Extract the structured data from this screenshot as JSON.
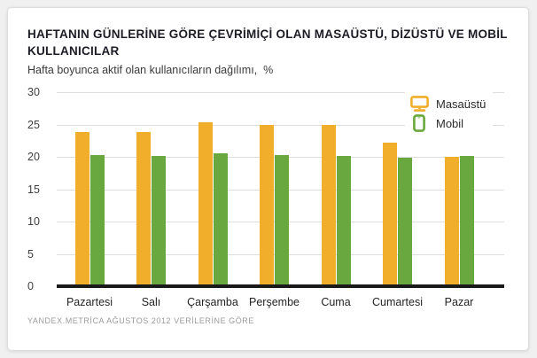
{
  "header": {
    "title_line1": "HAFTANIN GÜNLERİNE GÖRE ÇEVRİMİÇİ OLAN MASAÜSTÜ, DİZÜSTÜ VE MOBİL",
    "title_line2": "KULLANICILAR",
    "subtitle": "Hafta boyunca aktif olan kullanıcıların dağılımı,  %"
  },
  "footer": {
    "source": "YANDEX.METRİCA AĞUSTOS 2012 VERİLERİNE GÖRE"
  },
  "colors": {
    "desktop_bar": "#f0ae2b",
    "mobile_bar": "#68a83e",
    "gridline": "#dedede",
    "axis": "#1a1a1a",
    "card_background": "#ffffff",
    "page_background": "#f0f0f1"
  },
  "chart_data": {
    "type": "bar",
    "title": "HAFTANIN GÜNLERİNE GÖRE ÇEVRİMİÇİ OLAN MASAÜSTÜ, DİZÜSTÜ VE MOBİL KULLANICILAR",
    "subtitle": "Hafta boyunca aktif olan kullanıcıların dağılımı, %",
    "categories": [
      "Pazartesi",
      "Salı",
      "Çarşamba",
      "Perşembe",
      "Cuma",
      "Cumartesi",
      "Pazar"
    ],
    "series": [
      {
        "name": "Masaüstü",
        "icon": "desktop-icon",
        "color": "#f0ae2b",
        "values": [
          23.8,
          23.9,
          25.4,
          25.0,
          25.0,
          22.2,
          20.0
        ]
      },
      {
        "name": "Mobil",
        "icon": "mobile-icon",
        "color": "#68a83e",
        "values": [
          20.3,
          20.1,
          20.5,
          20.3,
          20.2,
          19.9,
          20.2
        ]
      }
    ],
    "ylabel": "%",
    "y_ticks": [
      0,
      5,
      10,
      15,
      20,
      25,
      30
    ],
    "ylim": [
      0,
      30
    ],
    "grid": "horizontal",
    "legend_position": "top-right",
    "source": "YANDEX.METRİCA AĞUSTOS 2012 VERİLERİNE GÖRE"
  }
}
